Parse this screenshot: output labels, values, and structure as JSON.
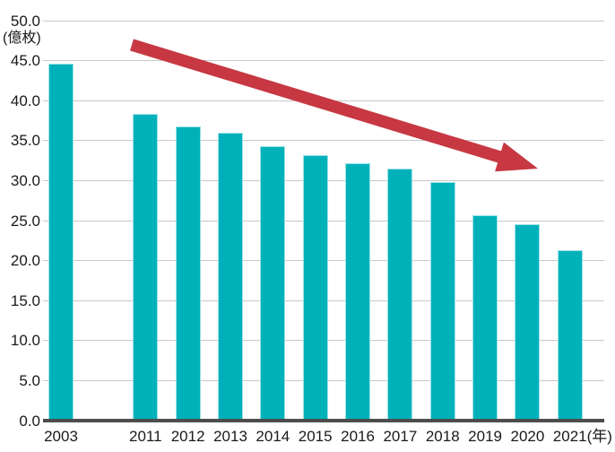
{
  "page": {
    "background_color": "#ffffff",
    "text_color": "#1a1a1a"
  },
  "chart_data": {
    "type": "bar",
    "title": "",
    "xlabel": "(年)",
    "ylabel": "(億枚)",
    "unit_label": "(億枚)",
    "x_axis_suffix": "(年)",
    "categories": [
      "2003",
      "2011",
      "2012",
      "2013",
      "2014",
      "2015",
      "2016",
      "2017",
      "2018",
      "2019",
      "2020",
      "2021"
    ],
    "values": [
      44.6,
      38.3,
      36.8,
      36.0,
      34.3,
      33.2,
      32.2,
      31.5,
      29.8,
      25.7,
      24.5,
      21.3
    ],
    "ylim": [
      0,
      50
    ],
    "ytick_step": 5,
    "ytick_labels": [
      "0.0",
      "5.0",
      "10.0",
      "15.0",
      "20.0",
      "25.0",
      "30.0",
      "35.0",
      "40.0",
      "45.0",
      "50.0"
    ],
    "grid": true,
    "legend_position": "none",
    "colors": {
      "bar_fill": "#00b1ba",
      "bar_edge": "#9ce2e6",
      "gridline": "#c9c9c9",
      "axis_line": "#4d4d4d",
      "text": "#1a1a1a"
    },
    "annotation": {
      "type": "arrow",
      "description": "thick red arrow sloping down from upper-left to lower-right indicating declining trend",
      "color": "#c73842"
    }
  }
}
